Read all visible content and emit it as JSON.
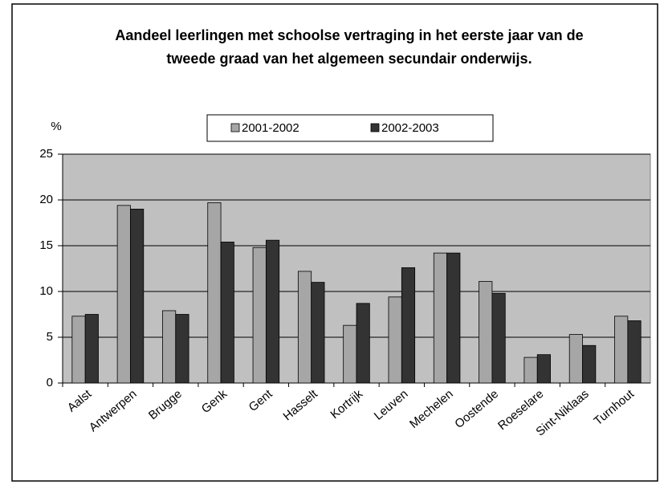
{
  "chart_data": {
    "type": "bar",
    "title": "Aandeel leerlingen met schoolse vertraging in het eerste jaar van de tweede graad van het algemeen secundair onderwijs.",
    "y_label": "%",
    "categories": [
      "Aalst",
      "Antwerpen",
      "Brugge",
      "Genk",
      "Gent",
      "Hasselt",
      "Kortrijk",
      "Leuven",
      "Mechelen",
      "Oostende",
      "Roeselare",
      "Sint-Niklaas",
      "Turnhout"
    ],
    "series": [
      {
        "name": "2001-2002",
        "color": "#a6a6a6",
        "values": [
          7.3,
          19.4,
          7.9,
          19.7,
          14.8,
          12.2,
          6.3,
          9.4,
          14.2,
          11.1,
          2.8,
          5.3,
          7.3
        ]
      },
      {
        "name": "2002-2003",
        "color": "#333333",
        "values": [
          7.5,
          19.0,
          7.5,
          15.4,
          15.6,
          11.0,
          8.7,
          12.6,
          14.2,
          9.8,
          3.1,
          4.1,
          6.8
        ]
      }
    ],
    "ylim": [
      0,
      25
    ],
    "yticks": [
      0,
      5,
      10,
      15,
      20,
      25
    ],
    "grid": true,
    "legend": "top"
  }
}
